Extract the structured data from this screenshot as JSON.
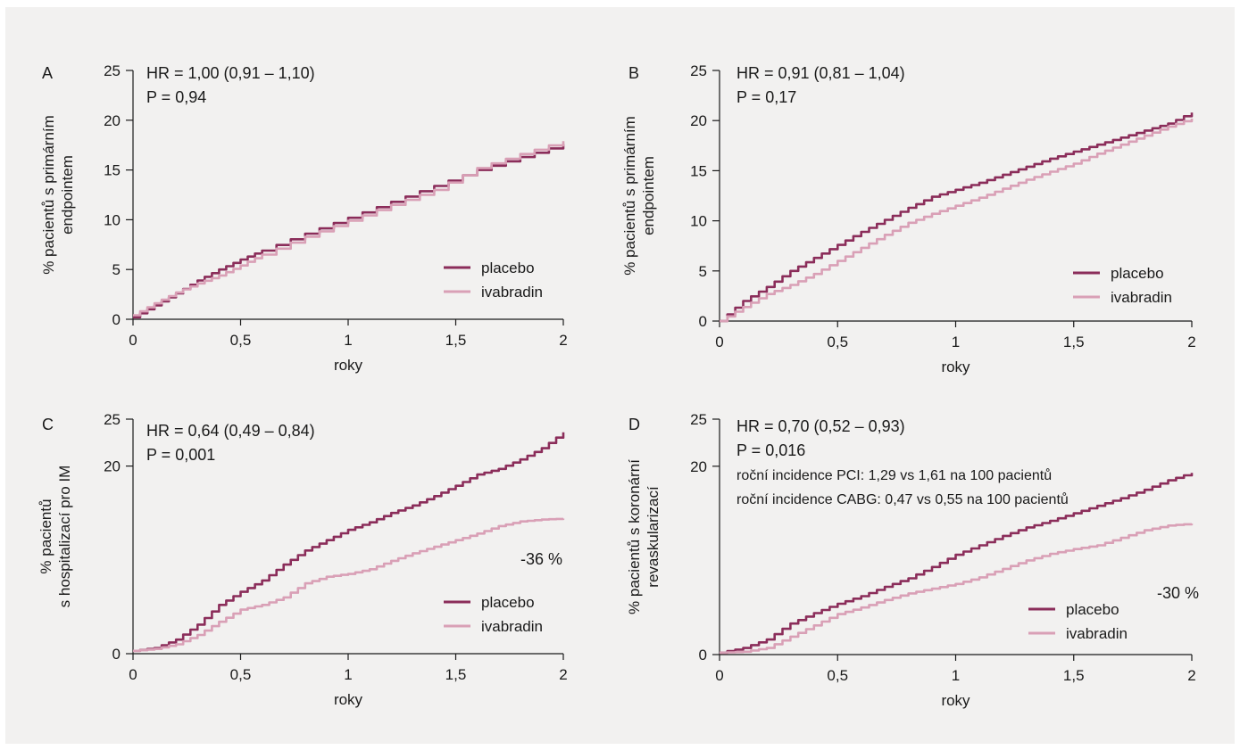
{
  "colors": {
    "placebo": "#8b2d5a",
    "ivabradin": "#d9a0b6",
    "axis": "#1a1a1a",
    "panel_bg": "#f2f1f0"
  },
  "chart_data": [
    {
      "type": "line",
      "panel_label": "A",
      "xlabel": "roky",
      "ylabel_lines": [
        "% pacientů s primárním",
        "endpointem"
      ],
      "xlim": [
        0,
        2
      ],
      "ylim": [
        0,
        25
      ],
      "xticks": [
        0,
        0.5,
        1,
        1.5,
        2
      ],
      "xtick_labels": [
        "0",
        "0,5",
        "1",
        "1,5",
        "2"
      ],
      "yticks": [
        0,
        5,
        10,
        15,
        20,
        25
      ],
      "ytick_labels": [
        "0",
        "5",
        "10",
        "15",
        "20",
        "25"
      ],
      "annotations": [
        "HR = 1,00 (0,91 – 1,10)",
        "P = 0,94"
      ],
      "reduction_label": "",
      "legend": [
        "placebo",
        "ivabradin"
      ],
      "series": [
        {
          "name": "placebo",
          "x": [
            0,
            0.1,
            0.2,
            0.3,
            0.4,
            0.5,
            0.6,
            0.8,
            1.0,
            1.2,
            1.4,
            1.6,
            1.8,
            2.0
          ],
          "y": [
            0.2,
            1.4,
            2.6,
            3.9,
            5.0,
            6.0,
            6.9,
            8.6,
            10.2,
            11.8,
            13.4,
            15.0,
            16.3,
            17.6
          ]
        },
        {
          "name": "ivabradin",
          "x": [
            0,
            0.1,
            0.2,
            0.3,
            0.4,
            0.5,
            0.6,
            0.8,
            1.0,
            1.2,
            1.4,
            1.6,
            1.8,
            2.0
          ],
          "y": [
            0.4,
            1.6,
            2.7,
            3.6,
            4.4,
            5.4,
            6.5,
            8.3,
            9.9,
            11.5,
            13.0,
            15.2,
            16.6,
            17.9
          ]
        }
      ]
    },
    {
      "type": "line",
      "panel_label": "B",
      "xlabel": "roky",
      "ylabel_lines": [
        "% pacientů s primárním",
        "endpointem"
      ],
      "xlim": [
        0,
        2
      ],
      "ylim": [
        0,
        25
      ],
      "xticks": [
        0,
        0.5,
        1,
        1.5,
        2
      ],
      "xtick_labels": [
        "0",
        "0,5",
        "1",
        "1,5",
        "2"
      ],
      "yticks": [
        0,
        5,
        10,
        15,
        20,
        25
      ],
      "ytick_labels": [
        "0",
        "5",
        "10",
        "15",
        "20",
        "25"
      ],
      "annotations": [
        "HR = 0,91 (0,81 – 1,04)",
        "P = 0,17"
      ],
      "reduction_label": "",
      "legend": [
        "placebo",
        "ivabradin"
      ],
      "series": [
        {
          "name": "placebo",
          "x": [
            0,
            0.1,
            0.2,
            0.3,
            0.4,
            0.5,
            0.6,
            0.7,
            0.8,
            0.9,
            1.0,
            1.1,
            1.2,
            1.3,
            1.4,
            1.5,
            1.6,
            1.7,
            1.8,
            1.9,
            2.0
          ],
          "y": [
            0,
            2.0,
            3.4,
            5.0,
            6.3,
            7.6,
            8.9,
            10.1,
            11.3,
            12.4,
            13.1,
            13.8,
            14.6,
            15.4,
            16.2,
            16.9,
            17.6,
            18.3,
            19.0,
            19.7,
            20.8
          ]
        },
        {
          "name": "ivabradin",
          "x": [
            0,
            0.1,
            0.2,
            0.3,
            0.4,
            0.5,
            0.6,
            0.7,
            0.8,
            0.9,
            1.0,
            1.1,
            1.2,
            1.3,
            1.4,
            1.5,
            1.6,
            1.7,
            1.8,
            1.9,
            2.0
          ],
          "y": [
            0,
            1.4,
            2.7,
            3.6,
            4.7,
            6.0,
            7.3,
            8.6,
            9.8,
            10.7,
            11.5,
            12.3,
            13.2,
            14.1,
            14.9,
            15.7,
            16.7,
            17.6,
            18.5,
            19.4,
            20.2
          ]
        }
      ]
    },
    {
      "type": "line",
      "panel_label": "C",
      "xlabel": "roky",
      "ylabel_lines": [
        "% pacientů",
        "s hospitalizací pro IM"
      ],
      "xlim": [
        0,
        2
      ],
      "ylim": [
        0,
        25
      ],
      "xticks": [
        0,
        0.5,
        1,
        1.5,
        2
      ],
      "xtick_labels": [
        "0",
        "0,5",
        "1",
        "1,5",
        "2"
      ],
      "yticks": [
        0,
        20,
        25
      ],
      "ytick_labels": [
        "0",
        "20",
        "25"
      ],
      "annotations": [
        "HR = 0,64 (0,49 – 0,84)",
        "P = 0,001"
      ],
      "reduction_label": "-36 %",
      "legend": [
        "placebo",
        "ivabradin"
      ],
      "series": [
        {
          "name": "placebo",
          "x": [
            0,
            0.1,
            0.2,
            0.3,
            0.4,
            0.5,
            0.6,
            0.7,
            0.8,
            0.9,
            1.0,
            1.1,
            1.2,
            1.3,
            1.4,
            1.5,
            1.6,
            1.7,
            1.8,
            1.9,
            2.0
          ],
          "y": [
            0.3,
            0.6,
            1.5,
            3.1,
            5.2,
            6.6,
            7.8,
            9.5,
            11.0,
            12.1,
            13.2,
            14.0,
            15.0,
            15.8,
            16.8,
            17.9,
            19.1,
            19.7,
            20.7,
            21.9,
            23.6
          ]
        },
        {
          "name": "ivabradin",
          "x": [
            0,
            0.1,
            0.2,
            0.3,
            0.4,
            0.5,
            0.6,
            0.7,
            0.8,
            0.9,
            1.0,
            1.1,
            1.2,
            1.3,
            1.4,
            1.5,
            1.6,
            1.7,
            1.8,
            1.9,
            2.0
          ],
          "y": [
            0.3,
            0.5,
            1.0,
            2.0,
            3.4,
            4.7,
            5.2,
            6.0,
            7.5,
            8.2,
            8.5,
            9.0,
            9.9,
            10.7,
            11.4,
            12.1,
            12.8,
            13.6,
            14.1,
            14.3,
            14.4
          ]
        }
      ]
    },
    {
      "type": "line",
      "panel_label": "D",
      "xlabel": "roky",
      "ylabel_lines": [
        "% pacientů s koronární",
        "revaskularizací"
      ],
      "xlim": [
        0,
        2
      ],
      "ylim": [
        0,
        25
      ],
      "xticks": [
        0,
        0.5,
        1,
        1.5,
        2
      ],
      "xtick_labels": [
        "0",
        "0,5",
        "1",
        "1,5",
        "2"
      ],
      "yticks": [
        0,
        20,
        25
      ],
      "ytick_labels": [
        "0",
        "20",
        "25"
      ],
      "annotations": [
        "HR = 0,70 (0,52 – 0,93)",
        "P = 0,016",
        "roční incidence PCI: 1,29 vs 1,61 na 100 pacientů",
        "roční incidence CABG: 0,47 vs 0,55 na 100 pacientů"
      ],
      "reduction_label": "-30 %",
      "legend": [
        "placebo",
        "ivabradin"
      ],
      "series": [
        {
          "name": "placebo",
          "x": [
            0,
            0.1,
            0.2,
            0.3,
            0.4,
            0.5,
            0.6,
            0.7,
            0.8,
            0.9,
            1.0,
            1.1,
            1.2,
            1.3,
            1.4,
            1.5,
            1.6,
            1.7,
            1.8,
            1.9,
            2.0
          ],
          "y": [
            0.2,
            0.7,
            1.6,
            3.3,
            4.4,
            5.4,
            6.2,
            7.2,
            8.1,
            9.3,
            10.6,
            11.6,
            12.6,
            13.5,
            14.2,
            15.0,
            15.8,
            16.6,
            17.5,
            18.5,
            19.3
          ]
        },
        {
          "name": "ivabradin",
          "x": [
            0,
            0.1,
            0.2,
            0.3,
            0.4,
            0.5,
            0.6,
            0.7,
            0.8,
            0.9,
            1.0,
            1.1,
            1.2,
            1.3,
            1.4,
            1.5,
            1.6,
            1.7,
            1.8,
            1.9,
            2.0
          ],
          "y": [
            0.2,
            0.3,
            0.7,
            1.9,
            3.1,
            4.3,
            5.0,
            5.8,
            6.5,
            7.0,
            7.5,
            8.2,
            9.1,
            10.0,
            10.7,
            11.2,
            11.6,
            12.4,
            13.2,
            13.7,
            13.9
          ]
        }
      ]
    }
  ]
}
